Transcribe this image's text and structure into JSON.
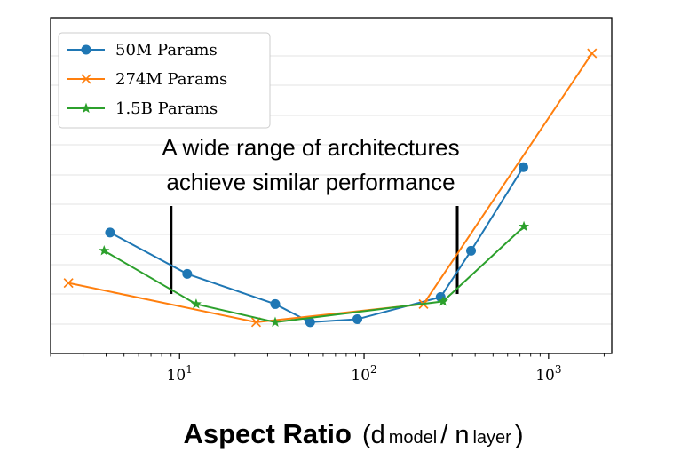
{
  "chart_data": {
    "type": "line",
    "x_scale": "log",
    "xlim": [
      2,
      2200
    ],
    "y_scale": "linear",
    "y_tick_labels_shown": false,
    "grid": "horizontal",
    "legend_position": "top-left",
    "x_tick_labels": [
      {
        "value": 10,
        "base": "10",
        "exp": "1"
      },
      {
        "value": 100,
        "base": "10",
        "exp": "2"
      },
      {
        "value": 1000,
        "base": "10",
        "exp": "3"
      }
    ],
    "xlabel": {
      "bold": "Aspect Ratio",
      "open": "(d",
      "sub1": "model",
      "mid": " / n",
      "sub2": "layer",
      "close": ")"
    },
    "annotation": {
      "line1": "A wide range of architectures",
      "line2": "achieve similar performance",
      "markers_x": [
        9,
        320
      ]
    },
    "series": [
      {
        "name": "50M Params",
        "color": "#1f77b4",
        "marker": "circle",
        "x": [
          4.2,
          11,
          33,
          51,
          92,
          260,
          380,
          730
        ],
        "y": [
          0.36,
          0.237,
          0.147,
          0.093,
          0.102,
          0.168,
          0.306,
          0.555
        ]
      },
      {
        "name": "274M Params",
        "color": "#ff7f0e",
        "marker": "x",
        "x": [
          2.5,
          26,
          210,
          1720
        ],
        "y": [
          0.21,
          0.093,
          0.147,
          0.894
        ]
      },
      {
        "name": "1.5B Params",
        "color": "#2ca02c",
        "marker": "star",
        "x": [
          3.9,
          12.3,
          33,
          268,
          735
        ],
        "y": [
          0.306,
          0.147,
          0.093,
          0.155,
          0.378
        ]
      }
    ]
  }
}
